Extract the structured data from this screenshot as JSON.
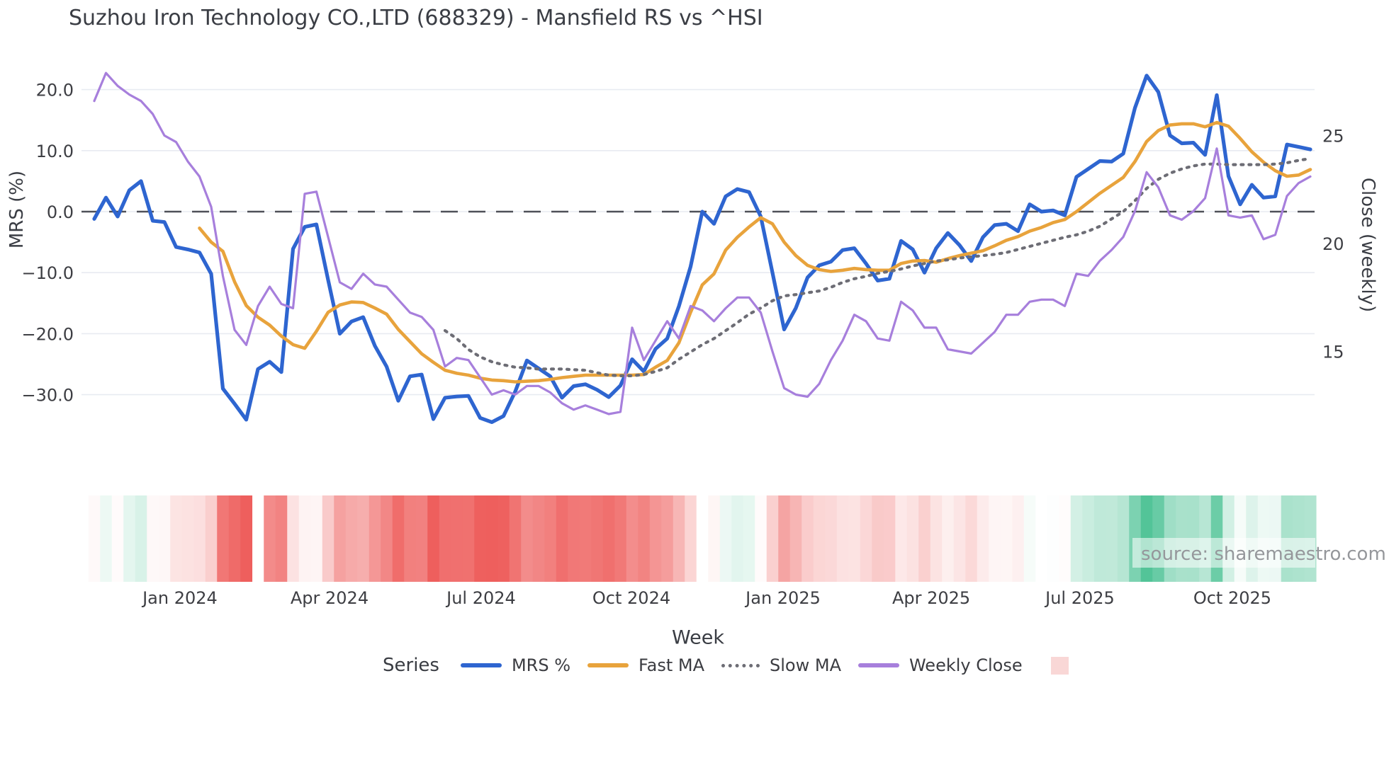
{
  "title": "Suzhou Iron Technology CO.,LTD (688329) - Mansfield RS vs ^HSI",
  "source": "source: sharemaestro.com",
  "axes": {
    "left": {
      "label": "MRS (%)",
      "ticks": [
        {
          "label": "20.0",
          "value": 20
        },
        {
          "label": "10.0",
          "value": 10
        },
        {
          "label": "0.0",
          "value": 0
        },
        {
          "label": "−10.0",
          "value": -10
        },
        {
          "label": "−20.0",
          "value": -20
        },
        {
          "label": "−30.0",
          "value": -30
        }
      ]
    },
    "right": {
      "label": "Close (weekly)",
      "ticks": [
        {
          "label": "25",
          "value": 25
        },
        {
          "label": "20",
          "value": 20
        },
        {
          "label": "15",
          "value": 15
        }
      ]
    },
    "x": {
      "label": "Week",
      "ticks": [
        {
          "label": "Jan 2024",
          "week": 7.33
        },
        {
          "label": "Apr 2024",
          "week": 20.12
        },
        {
          "label": "Jul 2024",
          "week": 33.09
        },
        {
          "label": "Oct 2024",
          "week": 45.94
        },
        {
          "label": "Jan 2025",
          "week": 58.91
        },
        {
          "label": "Apr 2025",
          "week": 71.58
        },
        {
          "label": "Jul 2025",
          "week": 84.3
        },
        {
          "label": "Oct 2025",
          "week": 97.33
        }
      ]
    }
  },
  "legend": {
    "title": "Series",
    "items": [
      {
        "label": "MRS %",
        "color": "#2e65d0",
        "style": "solid"
      },
      {
        "label": "Fast MA",
        "color": "#e8a33c",
        "style": "solid"
      },
      {
        "label": "Slow MA",
        "color": "#6d6d75",
        "style": "dotted"
      },
      {
        "label": "Weekly Close",
        "color": "#a77fdc",
        "style": "solid"
      }
    ],
    "heatmap_swatch_color": "#f9d7d6"
  },
  "chart_data": {
    "type": "line",
    "title": "Suzhou Iron Technology CO.,LTD (688329) - Mansfield RS vs ^HSI",
    "xlabel": "Week",
    "ylabel_left": "MRS (%)",
    "ylabel_right": "Close (weekly)",
    "x_unit": "week_index",
    "weeks": 105,
    "left_axis_ticks": [
      20,
      10,
      0,
      -10,
      -20,
      -30
    ],
    "right_axis_ticks": [
      25,
      20,
      15
    ],
    "zero_line": 0,
    "grid": true,
    "legend_position": "bottom",
    "series": [
      {
        "name": "MRS %",
        "axis": "left",
        "color": "#2e65d0",
        "style": "solid",
        "values": [
          -1.2,
          2.3,
          -0.8,
          3.5,
          5.0,
          -1.5,
          -1.7,
          -5.8,
          -6.2,
          -6.7,
          -10.2,
          -29.0,
          -31.5,
          -34.1,
          -25.8,
          -24.6,
          -26.3,
          -6.1,
          -2.5,
          -2.1,
          -11.2,
          -20.0,
          -18.0,
          -17.3,
          -22.0,
          -25.4,
          -31.0,
          -27.0,
          -26.7,
          -34.0,
          -30.5,
          -30.3,
          -30.2,
          -33.8,
          -34.5,
          -33.5,
          -29.5,
          -24.4,
          -25.7,
          -27.0,
          -30.5,
          -28.6,
          -28.3,
          -29.2,
          -30.4,
          -28.5,
          -24.2,
          -26.2,
          -22.5,
          -20.8,
          -15.5,
          -9.0,
          0.0,
          -2.0,
          2.5,
          3.7,
          3.2,
          -0.8,
          -10.0,
          -19.3,
          -15.8,
          -10.8,
          -8.8,
          -8.2,
          -6.3,
          -6.0,
          -8.5,
          -11.3,
          -11.0,
          -4.8,
          -6.2,
          -10.0,
          -6.0,
          -3.5,
          -5.5,
          -8.1,
          -4.2,
          -2.2,
          -2.0,
          -3.2,
          1.2,
          0.0,
          0.2,
          -0.6,
          5.7,
          7.0,
          8.3,
          8.2,
          9.5,
          17.0,
          22.3,
          19.6,
          12.5,
          11.2,
          11.3,
          9.3,
          19.1,
          5.8,
          1.2,
          4.4,
          2.3,
          2.5,
          11.0,
          10.6,
          10.2
        ]
      },
      {
        "name": "Fast MA",
        "axis": "left",
        "color": "#e8a33c",
        "style": "solid",
        "values": [
          null,
          null,
          null,
          null,
          null,
          null,
          null,
          null,
          null,
          -2.7,
          -5.0,
          -6.5,
          -11.5,
          -15.4,
          -17.3,
          -18.6,
          -20.4,
          -21.8,
          -22.4,
          -19.6,
          -16.5,
          -15.3,
          -14.8,
          -14.9,
          -15.8,
          -16.8,
          -19.3,
          -21.3,
          -23.3,
          -24.7,
          -26.0,
          -26.5,
          -26.8,
          -27.3,
          -27.6,
          -27.7,
          -27.9,
          -27.8,
          -27.7,
          -27.5,
          -27.2,
          -27.0,
          -26.8,
          -26.8,
          -26.8,
          -26.8,
          -26.8,
          -26.7,
          -25.5,
          -24.4,
          -21.5,
          -16.5,
          -12.0,
          -10.2,
          -6.3,
          -4.2,
          -2.5,
          -1.0,
          -2.0,
          -5.0,
          -7.2,
          -8.8,
          -9.5,
          -9.8,
          -9.6,
          -9.3,
          -9.5,
          -9.6,
          -9.6,
          -8.5,
          -8.1,
          -8.0,
          -8.3,
          -7.7,
          -7.2,
          -6.8,
          -6.4,
          -5.6,
          -4.7,
          -4.1,
          -3.2,
          -2.6,
          -1.8,
          -1.3,
          0.0,
          1.5,
          3.0,
          4.3,
          5.6,
          8.2,
          11.5,
          13.3,
          14.2,
          14.4,
          14.4,
          13.9,
          14.6,
          14.0,
          12.0,
          9.8,
          8.1,
          6.7,
          5.8,
          6.0,
          6.9
        ]
      },
      {
        "name": "Slow MA",
        "axis": "left",
        "color": "#6d6d75",
        "style": "dotted",
        "values": [
          null,
          null,
          null,
          null,
          null,
          null,
          null,
          null,
          null,
          null,
          null,
          null,
          null,
          null,
          null,
          null,
          null,
          null,
          null,
          null,
          null,
          null,
          null,
          null,
          null,
          null,
          null,
          null,
          null,
          null,
          -19.5,
          -20.8,
          -22.6,
          -23.8,
          -24.6,
          -25.1,
          -25.5,
          -25.6,
          -25.8,
          -25.8,
          -25.8,
          -25.9,
          -26.0,
          -26.4,
          -26.8,
          -26.9,
          -26.9,
          -26.7,
          -26.2,
          -25.6,
          -24.2,
          -23.0,
          -21.8,
          -20.8,
          -19.5,
          -18.2,
          -16.8,
          -15.8,
          -14.6,
          -13.8,
          -13.6,
          -13.3,
          -13.0,
          -12.4,
          -11.6,
          -11.0,
          -10.6,
          -10.1,
          -9.8,
          -9.4,
          -8.9,
          -8.5,
          -8.1,
          -7.9,
          -7.6,
          -7.4,
          -7.2,
          -7.0,
          -6.7,
          -6.2,
          -5.7,
          -5.2,
          -4.7,
          -4.2,
          -3.8,
          -3.2,
          -2.4,
          -1.2,
          0.0,
          1.8,
          3.8,
          5.3,
          6.3,
          7.0,
          7.5,
          7.8,
          7.8,
          7.7,
          7.7,
          7.7,
          7.7,
          7.8,
          8.0,
          8.4,
          8.7
        ]
      },
      {
        "name": "Weekly Close",
        "axis": "right",
        "color": "#a77fdc",
        "style": "solid",
        "values": [
          26.6,
          27.9,
          27.3,
          26.9,
          26.6,
          26.0,
          25.0,
          24.7,
          23.8,
          23.1,
          21.7,
          18.5,
          16.0,
          15.3,
          17.1,
          18.0,
          17.2,
          17.0,
          22.3,
          22.4,
          20.3,
          18.2,
          17.9,
          18.6,
          18.1,
          18.0,
          17.4,
          16.8,
          16.6,
          16.0,
          14.3,
          14.7,
          14.6,
          13.8,
          13.0,
          13.2,
          13.0,
          13.4,
          13.4,
          13.1,
          12.6,
          12.3,
          12.5,
          12.3,
          12.1,
          12.2,
          16.1,
          14.6,
          15.5,
          16.4,
          15.6,
          17.1,
          16.9,
          16.4,
          17.0,
          17.5,
          17.5,
          16.8,
          15.0,
          13.3,
          13.0,
          12.9,
          13.5,
          14.6,
          15.5,
          16.7,
          16.4,
          15.6,
          15.5,
          17.3,
          16.9,
          16.1,
          16.1,
          15.1,
          15.0,
          14.9,
          15.4,
          15.9,
          16.7,
          16.7,
          17.3,
          17.4,
          17.4,
          17.1,
          18.6,
          18.5,
          19.2,
          19.7,
          20.3,
          21.5,
          23.3,
          22.6,
          21.3,
          21.1,
          21.5,
          22.1,
          24.4,
          21.3,
          21.2,
          21.3,
          20.2,
          20.4,
          22.2,
          22.8,
          23.1
        ]
      }
    ],
    "heatmap": {
      "description": "weekly strip colored by MRS % value, red negative to green positive",
      "based_on_series": "MRS %",
      "missing_week_index": 14,
      "negative_full_color": "#ee5f5d",
      "positive_full_color": "#3ebd8c",
      "negative_cap": -34,
      "positive_cap": 25
    }
  }
}
